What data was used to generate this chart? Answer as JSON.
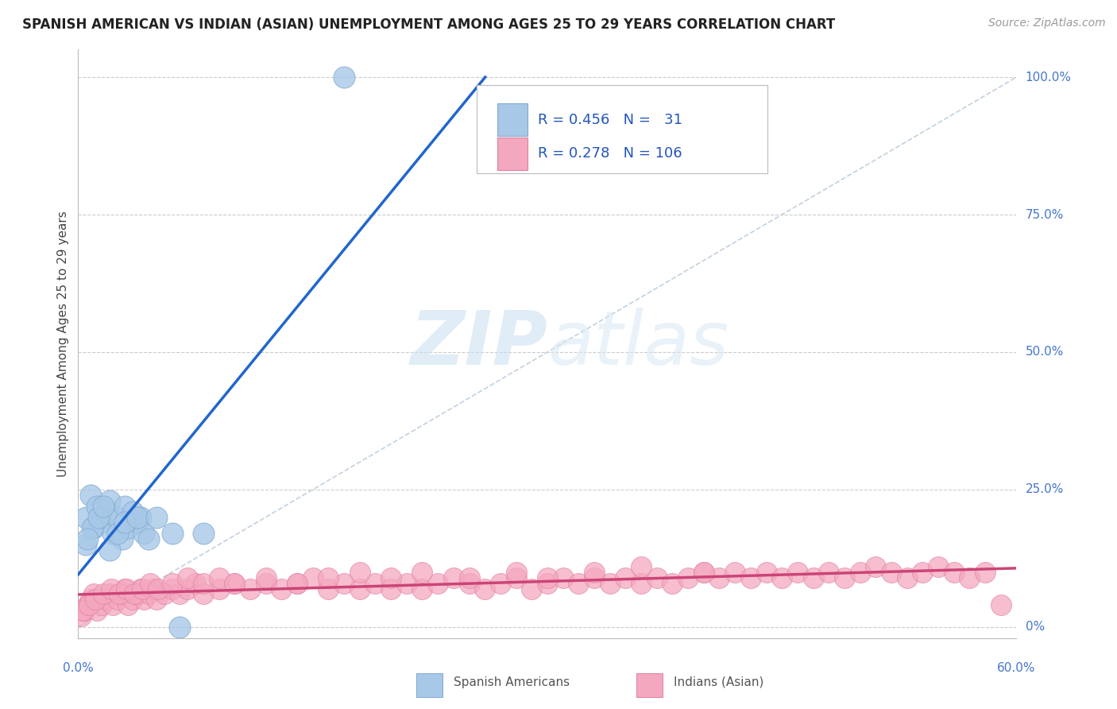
{
  "title": "SPANISH AMERICAN VS INDIAN (ASIAN) UNEMPLOYMENT AMONG AGES 25 TO 29 YEARS CORRELATION CHART",
  "source_text": "Source: ZipAtlas.com",
  "xlim": [
    0,
    0.6
  ],
  "ylim": [
    -0.02,
    1.05
  ],
  "ylabel_tick_vals": [
    0,
    0.25,
    0.5,
    0.75,
    1.0
  ],
  "ylabel_tick_labels": [
    "0%",
    "25.0%",
    "50.0%",
    "75.0%",
    "100.0%"
  ],
  "watermark_text": "ZIPatlas",
  "legend_entries": [
    {
      "label": "Spanish Americans",
      "face_color": "#a8c8e8",
      "edge_color": "#80aad0",
      "R": 0.456,
      "N": 31
    },
    {
      "label": "Indians (Asian)",
      "face_color": "#f4a8c0",
      "edge_color": "#e080a0",
      "R": 0.278,
      "N": 106
    }
  ],
  "blue_line_color": "#2266cc",
  "pink_line_color": "#cc4477",
  "diag_line_color": "#bbccdd",
  "title_color": "#222222",
  "tick_label_color": "#4477cc",
  "axis_label_color": "#444444",
  "background_color": "#ffffff",
  "grid_color": "#cccccc",
  "legend_R_N_color": "#2255bb",
  "blue_scatter_x": [
    0.005,
    0.008,
    0.01,
    0.012,
    0.015,
    0.018,
    0.02,
    0.022,
    0.025,
    0.028,
    0.03,
    0.032,
    0.035,
    0.038,
    0.04,
    0.042,
    0.045,
    0.005,
    0.009,
    0.013,
    0.016,
    0.02,
    0.025,
    0.03,
    0.038,
    0.05,
    0.06,
    0.065,
    0.08,
    0.006,
    0.17
  ],
  "blue_scatter_y": [
    0.2,
    0.24,
    0.18,
    0.22,
    0.19,
    0.21,
    0.23,
    0.17,
    0.2,
    0.16,
    0.22,
    0.18,
    0.21,
    0.19,
    0.2,
    0.17,
    0.16,
    0.15,
    0.18,
    0.2,
    0.22,
    0.14,
    0.17,
    0.19,
    0.2,
    0.2,
    0.17,
    0.0,
    0.17,
    0.16,
    1.0
  ],
  "pink_scatter_x": [
    0.002,
    0.004,
    0.006,
    0.008,
    0.01,
    0.012,
    0.015,
    0.018,
    0.02,
    0.022,
    0.025,
    0.028,
    0.03,
    0.032,
    0.035,
    0.038,
    0.04,
    0.042,
    0.045,
    0.048,
    0.05,
    0.055,
    0.06,
    0.065,
    0.07,
    0.075,
    0.08,
    0.09,
    0.1,
    0.11,
    0.12,
    0.13,
    0.14,
    0.15,
    0.16,
    0.17,
    0.18,
    0.19,
    0.2,
    0.21,
    0.22,
    0.23,
    0.24,
    0.25,
    0.26,
    0.27,
    0.28,
    0.29,
    0.3,
    0.31,
    0.32,
    0.33,
    0.34,
    0.35,
    0.36,
    0.37,
    0.38,
    0.39,
    0.4,
    0.41,
    0.42,
    0.43,
    0.44,
    0.45,
    0.46,
    0.47,
    0.48,
    0.49,
    0.5,
    0.51,
    0.52,
    0.53,
    0.54,
    0.55,
    0.56,
    0.57,
    0.58,
    0.59,
    0.003,
    0.007,
    0.011,
    0.016,
    0.021,
    0.026,
    0.031,
    0.036,
    0.041,
    0.046,
    0.051,
    0.06,
    0.07,
    0.08,
    0.09,
    0.1,
    0.12,
    0.14,
    0.16,
    0.18,
    0.2,
    0.22,
    0.25,
    0.28,
    0.3,
    0.33,
    0.36,
    0.4
  ],
  "pink_scatter_y": [
    0.02,
    0.03,
    0.04,
    0.05,
    0.06,
    0.03,
    0.04,
    0.05,
    0.06,
    0.04,
    0.05,
    0.06,
    0.07,
    0.04,
    0.05,
    0.06,
    0.07,
    0.05,
    0.06,
    0.07,
    0.05,
    0.06,
    0.07,
    0.06,
    0.07,
    0.08,
    0.06,
    0.07,
    0.08,
    0.07,
    0.08,
    0.07,
    0.08,
    0.09,
    0.07,
    0.08,
    0.07,
    0.08,
    0.07,
    0.08,
    0.07,
    0.08,
    0.09,
    0.08,
    0.07,
    0.08,
    0.09,
    0.07,
    0.08,
    0.09,
    0.08,
    0.09,
    0.08,
    0.09,
    0.08,
    0.09,
    0.08,
    0.09,
    0.1,
    0.09,
    0.1,
    0.09,
    0.1,
    0.09,
    0.1,
    0.09,
    0.1,
    0.09,
    0.1,
    0.11,
    0.1,
    0.09,
    0.1,
    0.11,
    0.1,
    0.09,
    0.1,
    0.04,
    0.03,
    0.04,
    0.05,
    0.06,
    0.07,
    0.06,
    0.07,
    0.06,
    0.07,
    0.08,
    0.07,
    0.08,
    0.09,
    0.08,
    0.09,
    0.08,
    0.09,
    0.08,
    0.09,
    0.1,
    0.09,
    0.1,
    0.09,
    0.1,
    0.09,
    0.1,
    0.11,
    0.1
  ]
}
